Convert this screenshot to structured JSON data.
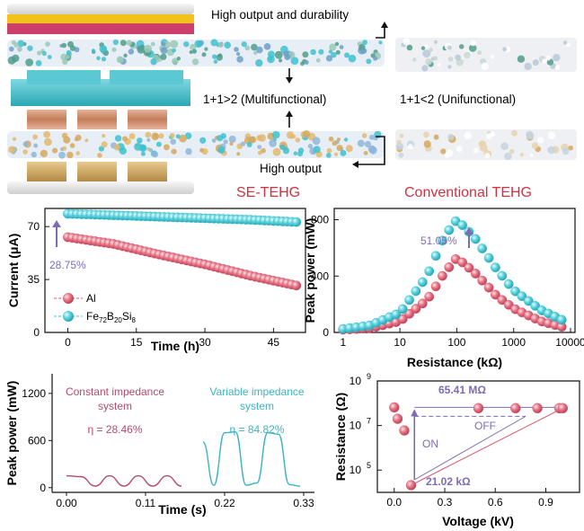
{
  "schematic": {
    "label_top": "High output and durability",
    "label_mid_left": "1+1>2 (Multifunctional)",
    "label_mid_right": "1+1<2 (Unifunctional)",
    "label_bottom": "High output",
    "title_left": "SE-TEHG",
    "title_right": "Conventional TEHG",
    "title_color": "#d32f3f",
    "colors": {
      "cyan": "#3fc1cf",
      "gold": "#d6a85a",
      "green": "#4f9e8a",
      "copper": "#c88a6a"
    }
  },
  "chart_data": [
    {
      "id": "current-vs-time",
      "type": "scatter",
      "xlabel": "Time (h)",
      "ylabel": "Current (μA)",
      "xlim": [
        -5,
        52
      ],
      "ylim": [
        0,
        82
      ],
      "xticks": [
        "0",
        "15",
        "30",
        "45"
      ],
      "yticks": [
        "0",
        "35",
        "70"
      ],
      "annotation": "28.75%",
      "annotation_color": "#7e6bb5",
      "legend_position": "lower-left",
      "series": [
        {
          "name": "Al",
          "color": "#d9556a",
          "x": [
            0,
            10,
            20,
            30,
            40,
            50
          ],
          "y": [
            63,
            58.5,
            51.5,
            45,
            37.5,
            31
          ]
        },
        {
          "name": "Fe72B20Si8",
          "legend_base": "Fe",
          "legend_parts": [
            [
              "72",
              "B"
            ],
            [
              "20",
              "Si"
            ],
            [
              "8",
              ""
            ]
          ],
          "color": "#3cc2d2",
          "x": [
            0,
            10,
            20,
            30,
            40,
            50
          ],
          "y": [
            78.5,
            77.5,
            76.5,
            75.5,
            74.5,
            73
          ]
        }
      ]
    },
    {
      "id": "power-vs-resistance",
      "type": "scatter",
      "scale": "log-x",
      "xlabel": "Resistance (kΩ)",
      "ylabel": "Peak power (mW)",
      "xlim": [
        0.7,
        12000
      ],
      "ylim": [
        0,
        880
      ],
      "xticks": [
        "1",
        "10",
        "100",
        "1000",
        "10000"
      ],
      "yticks": [
        "0",
        "400",
        "800"
      ],
      "annotation": "51.05%",
      "annotation_color": "#7e6bb5",
      "series": [
        {
          "name": "Al",
          "color": "#d9556a",
          "x": [
            1,
            3,
            10,
            30,
            60,
            100,
            200,
            500,
            1000,
            3000,
            7000
          ],
          "y": [
            20,
            30,
            80,
            230,
            420,
            530,
            430,
            260,
            170,
            80,
            40
          ]
        },
        {
          "name": "Fe72B20Si8",
          "color": "#3cc2d2",
          "x": [
            1,
            3,
            10,
            30,
            60,
            100,
            200,
            500,
            1000,
            3000,
            7000
          ],
          "y": [
            25,
            50,
            140,
            400,
            680,
            800,
            680,
            450,
            300,
            160,
            90
          ]
        }
      ]
    },
    {
      "id": "power-vs-time",
      "type": "line",
      "xlabel": "Time (s)",
      "ylabel": "Peak power (mW)",
      "xlim": [
        -0.02,
        0.345
      ],
      "ylim": [
        -60,
        1450
      ],
      "xticks": [
        "0.00",
        "0.11",
        "0.22",
        "0.33"
      ],
      "yticks": [
        "0",
        "600",
        "1200"
      ],
      "annotations": [
        {
          "line1": "Constant impedance",
          "line2": "system",
          "eta": "η = 28.46%",
          "color": "#b24b6b"
        },
        {
          "line1": "Variable impedance",
          "line2": "system",
          "eta": "η = 84.82%",
          "color": "#3bb4c2"
        }
      ],
      "series": [
        {
          "name": "Constant impedance system",
          "color": "#b24b6b",
          "x": [
            0,
            0.02,
            0.04,
            0.06,
            0.08,
            0.1,
            0.12,
            0.14,
            0.16
          ],
          "y": [
            150,
            140,
            20,
            150,
            20,
            150,
            20,
            150,
            20
          ]
        },
        {
          "name": "Variable impedance system",
          "color": "#3bb4c2",
          "x": [
            0.19,
            0.205,
            0.22,
            0.235,
            0.25,
            0.265,
            0.28,
            0.295,
            0.31,
            0.325
          ],
          "y": [
            580,
            30,
            700,
            710,
            30,
            60,
            700,
            680,
            40,
            20
          ]
        }
      ]
    },
    {
      "id": "resistance-vs-voltage",
      "type": "scatter",
      "scale": "log-y",
      "xlabel": "Voltage (kV)",
      "ylabel": "Resistance (Ω)",
      "xlim": [
        -0.1,
        1.1
      ],
      "ylim": [
        10000,
        1000000000
      ],
      "xticks": [
        "0.0",
        "0.3",
        "0.6",
        "0.9"
      ],
      "yticks": [
        "10^5",
        "10^7",
        "10^9"
      ],
      "label_high": "65.41 MΩ",
      "label_low": "21.02 kΩ",
      "label_off": "OFF",
      "label_on": "ON",
      "marker_color": "#d9556a",
      "points": [
        {
          "x": 0.0,
          "y": 65410000
        },
        {
          "x": 0.02,
          "y": 20000000
        },
        {
          "x": 0.06,
          "y": 6000000
        },
        {
          "x": 0.1,
          "y": 21020
        },
        {
          "x": 0.5,
          "y": 60000000
        },
        {
          "x": 0.72,
          "y": 60000000
        },
        {
          "x": 0.85,
          "y": 60000000
        },
        {
          "x": 0.98,
          "y": 60000000
        },
        {
          "x": 1.0,
          "y": 60000000
        }
      ]
    }
  ]
}
